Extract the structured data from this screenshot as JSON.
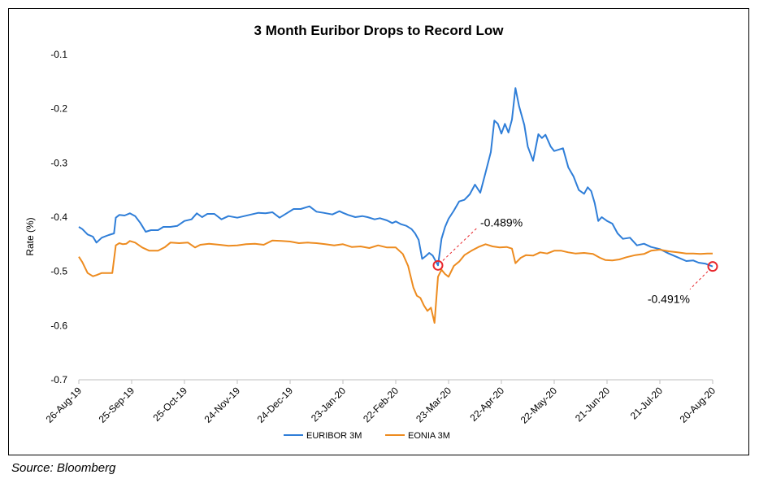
{
  "chart_data": {
    "type": "line",
    "title": "3 Month Euribor Drops to Record Low",
    "xlabel": "",
    "ylabel": "Rate (%)",
    "ylim": [
      -0.7,
      -0.1
    ],
    "yticks": [
      -0.1,
      -0.2,
      -0.3,
      -0.4,
      -0.5,
      -0.6,
      -0.7
    ],
    "xlim": [
      "2019-08-26",
      "2020-08-20"
    ],
    "xtick_labels": [
      "26-Aug-19",
      "25-Sep-19",
      "25-Oct-19",
      "24-Nov-19",
      "24-Dec-19",
      "23-Jan-20",
      "22-Feb-20",
      "23-Mar-20",
      "22-Apr-20",
      "22-May-20",
      "21-Jun-20",
      "21-Jul-20",
      "20-Aug-20"
    ],
    "xtick_dates": [
      "2019-08-26",
      "2019-09-25",
      "2019-10-25",
      "2019-11-24",
      "2019-12-24",
      "2020-01-23",
      "2020-02-22",
      "2020-03-23",
      "2020-04-22",
      "2020-05-22",
      "2020-06-21",
      "2020-07-21",
      "2020-08-20"
    ],
    "grid": false,
    "legend": "bottom",
    "series": [
      {
        "name": "EURIBOR 3M",
        "color": "#2F7ED8",
        "points": [
          [
            "2019-08-26",
            -0.418
          ],
          [
            "2019-08-28",
            -0.422
          ],
          [
            "2019-08-31",
            -0.432
          ],
          [
            "2019-09-03",
            -0.436
          ],
          [
            "2019-09-05",
            -0.447
          ],
          [
            "2019-09-08",
            -0.438
          ],
          [
            "2019-09-12",
            -0.433
          ],
          [
            "2019-09-15",
            -0.43
          ],
          [
            "2019-09-16",
            -0.401
          ],
          [
            "2019-09-18",
            -0.396
          ],
          [
            "2019-09-21",
            -0.397
          ],
          [
            "2019-09-24",
            -0.393
          ],
          [
            "2019-09-27",
            -0.398
          ],
          [
            "2019-09-30",
            -0.411
          ],
          [
            "2019-10-03",
            -0.427
          ],
          [
            "2019-10-06",
            -0.424
          ],
          [
            "2019-10-10",
            -0.424
          ],
          [
            "2019-10-13",
            -0.418
          ],
          [
            "2019-10-17",
            -0.418
          ],
          [
            "2019-10-21",
            -0.416
          ],
          [
            "2019-10-25",
            -0.407
          ],
          [
            "2019-10-29",
            -0.404
          ],
          [
            "2019-11-01",
            -0.393
          ],
          [
            "2019-11-04",
            -0.4
          ],
          [
            "2019-11-07",
            -0.394
          ],
          [
            "2019-11-11",
            -0.394
          ],
          [
            "2019-11-15",
            -0.404
          ],
          [
            "2019-11-19",
            -0.398
          ],
          [
            "2019-11-24",
            -0.401
          ],
          [
            "2019-11-28",
            -0.398
          ],
          [
            "2019-12-02",
            -0.395
          ],
          [
            "2019-12-06",
            -0.392
          ],
          [
            "2019-12-10",
            -0.393
          ],
          [
            "2019-12-14",
            -0.391
          ],
          [
            "2019-12-18",
            -0.401
          ],
          [
            "2019-12-22",
            -0.393
          ],
          [
            "2019-12-26",
            -0.385
          ],
          [
            "2019-12-30",
            -0.385
          ],
          [
            "2020-01-04",
            -0.38
          ],
          [
            "2020-01-08",
            -0.39
          ],
          [
            "2020-01-12",
            -0.392
          ],
          [
            "2020-01-17",
            -0.395
          ],
          [
            "2020-01-21",
            -0.389
          ],
          [
            "2020-01-23",
            -0.392
          ],
          [
            "2020-01-26",
            -0.396
          ],
          [
            "2020-01-30",
            -0.4
          ],
          [
            "2020-02-03",
            -0.398
          ],
          [
            "2020-02-06",
            -0.4
          ],
          [
            "2020-02-10",
            -0.404
          ],
          [
            "2020-02-13",
            -0.402
          ],
          [
            "2020-02-17",
            -0.406
          ],
          [
            "2020-02-20",
            -0.411
          ],
          [
            "2020-02-22",
            -0.408
          ],
          [
            "2020-02-25",
            -0.413
          ],
          [
            "2020-02-28",
            -0.416
          ],
          [
            "2020-03-02",
            -0.422
          ],
          [
            "2020-03-04",
            -0.43
          ],
          [
            "2020-03-06",
            -0.442
          ],
          [
            "2020-03-08",
            -0.477
          ],
          [
            "2020-03-10",
            -0.472
          ],
          [
            "2020-03-12",
            -0.466
          ],
          [
            "2020-03-14",
            -0.471
          ],
          [
            "2020-03-17",
            -0.489
          ],
          [
            "2020-03-19",
            -0.44
          ],
          [
            "2020-03-21",
            -0.418
          ],
          [
            "2020-03-23",
            -0.403
          ],
          [
            "2020-03-26",
            -0.388
          ],
          [
            "2020-03-29",
            -0.371
          ],
          [
            "2020-04-01",
            -0.368
          ],
          [
            "2020-04-04",
            -0.358
          ],
          [
            "2020-04-07",
            -0.34
          ],
          [
            "2020-04-10",
            -0.355
          ],
          [
            "2020-04-13",
            -0.318
          ],
          [
            "2020-04-16",
            -0.28
          ],
          [
            "2020-04-18",
            -0.222
          ],
          [
            "2020-04-20",
            -0.228
          ],
          [
            "2020-04-22",
            -0.246
          ],
          [
            "2020-04-24",
            -0.228
          ],
          [
            "2020-04-26",
            -0.244
          ],
          [
            "2020-04-28",
            -0.22
          ],
          [
            "2020-04-30",
            -0.162
          ],
          [
            "2020-05-02",
            -0.195
          ],
          [
            "2020-05-05",
            -0.23
          ],
          [
            "2020-05-07",
            -0.27
          ],
          [
            "2020-05-10",
            -0.296
          ],
          [
            "2020-05-13",
            -0.247
          ],
          [
            "2020-05-15",
            -0.254
          ],
          [
            "2020-05-17",
            -0.248
          ],
          [
            "2020-05-20",
            -0.27
          ],
          [
            "2020-05-22",
            -0.278
          ],
          [
            "2020-05-25",
            -0.275
          ],
          [
            "2020-05-27",
            -0.273
          ],
          [
            "2020-05-30",
            -0.308
          ],
          [
            "2020-06-02",
            -0.325
          ],
          [
            "2020-06-05",
            -0.35
          ],
          [
            "2020-06-08",
            -0.357
          ],
          [
            "2020-06-10",
            -0.345
          ],
          [
            "2020-06-12",
            -0.352
          ],
          [
            "2020-06-14",
            -0.374
          ],
          [
            "2020-06-16",
            -0.407
          ],
          [
            "2020-06-18",
            -0.4
          ],
          [
            "2020-06-21",
            -0.407
          ],
          [
            "2020-06-24",
            -0.412
          ],
          [
            "2020-06-27",
            -0.43
          ],
          [
            "2020-06-30",
            -0.44
          ],
          [
            "2020-07-04",
            -0.438
          ],
          [
            "2020-07-08",
            -0.452
          ],
          [
            "2020-07-12",
            -0.449
          ],
          [
            "2020-07-16",
            -0.455
          ],
          [
            "2020-07-21",
            -0.459
          ],
          [
            "2020-07-26",
            -0.467
          ],
          [
            "2020-07-31",
            -0.474
          ],
          [
            "2020-08-05",
            -0.481
          ],
          [
            "2020-08-09",
            -0.48
          ],
          [
            "2020-08-12",
            -0.484
          ],
          [
            "2020-08-16",
            -0.486
          ],
          [
            "2020-08-20",
            -0.491
          ]
        ]
      },
      {
        "name": "EONIA 3M",
        "color": "#ED8B1F",
        "points": [
          [
            "2019-08-26",
            -0.473
          ],
          [
            "2019-08-28",
            -0.483
          ],
          [
            "2019-08-31",
            -0.503
          ],
          [
            "2019-09-03",
            -0.509
          ],
          [
            "2019-09-05",
            -0.507
          ],
          [
            "2019-09-08",
            -0.503
          ],
          [
            "2019-09-11",
            -0.503
          ],
          [
            "2019-09-14",
            -0.503
          ],
          [
            "2019-09-16",
            -0.452
          ],
          [
            "2019-09-18",
            -0.448
          ],
          [
            "2019-09-20",
            -0.45
          ],
          [
            "2019-09-22",
            -0.449
          ],
          [
            "2019-09-24",
            -0.444
          ],
          [
            "2019-09-27",
            -0.447
          ],
          [
            "2019-10-01",
            -0.456
          ],
          [
            "2019-10-05",
            -0.462
          ],
          [
            "2019-10-10",
            -0.462
          ],
          [
            "2019-10-14",
            -0.455
          ],
          [
            "2019-10-17",
            -0.447
          ],
          [
            "2019-10-22",
            -0.448
          ],
          [
            "2019-10-27",
            -0.447
          ],
          [
            "2019-10-31",
            -0.456
          ],
          [
            "2019-11-03",
            -0.451
          ],
          [
            "2019-11-08",
            -0.449
          ],
          [
            "2019-11-14",
            -0.451
          ],
          [
            "2019-11-19",
            -0.453
          ],
          [
            "2019-11-24",
            -0.452
          ],
          [
            "2019-11-29",
            -0.45
          ],
          [
            "2019-12-04",
            -0.449
          ],
          [
            "2019-12-09",
            -0.451
          ],
          [
            "2019-12-14",
            -0.443
          ],
          [
            "2019-12-19",
            -0.444
          ],
          [
            "2019-12-24",
            -0.445
          ],
          [
            "2019-12-29",
            -0.448
          ],
          [
            "2020-01-03",
            -0.447
          ],
          [
            "2020-01-08",
            -0.448
          ],
          [
            "2020-01-13",
            -0.45
          ],
          [
            "2020-01-18",
            -0.452
          ],
          [
            "2020-01-23",
            -0.45
          ],
          [
            "2020-01-28",
            -0.455
          ],
          [
            "2020-02-02",
            -0.454
          ],
          [
            "2020-02-07",
            -0.457
          ],
          [
            "2020-02-12",
            -0.452
          ],
          [
            "2020-02-17",
            -0.456
          ],
          [
            "2020-02-22",
            -0.456
          ],
          [
            "2020-02-26",
            -0.468
          ],
          [
            "2020-02-29",
            -0.49
          ],
          [
            "2020-03-03",
            -0.53
          ],
          [
            "2020-03-05",
            -0.545
          ],
          [
            "2020-03-07",
            -0.549
          ],
          [
            "2020-03-09",
            -0.563
          ],
          [
            "2020-03-11",
            -0.573
          ],
          [
            "2020-03-13",
            -0.567
          ],
          [
            "2020-03-15",
            -0.595
          ],
          [
            "2020-03-17",
            -0.51
          ],
          [
            "2020-03-19",
            -0.497
          ],
          [
            "2020-03-21",
            -0.505
          ],
          [
            "2020-03-23",
            -0.51
          ],
          [
            "2020-03-26",
            -0.49
          ],
          [
            "2020-03-29",
            -0.482
          ],
          [
            "2020-04-01",
            -0.47
          ],
          [
            "2020-04-05",
            -0.462
          ],
          [
            "2020-04-09",
            -0.455
          ],
          [
            "2020-04-13",
            -0.45
          ],
          [
            "2020-04-17",
            -0.454
          ],
          [
            "2020-04-21",
            -0.456
          ],
          [
            "2020-04-25",
            -0.455
          ],
          [
            "2020-04-28",
            -0.458
          ],
          [
            "2020-04-30",
            -0.485
          ],
          [
            "2020-05-03",
            -0.475
          ],
          [
            "2020-05-06",
            -0.47
          ],
          [
            "2020-05-10",
            -0.471
          ],
          [
            "2020-05-14",
            -0.465
          ],
          [
            "2020-05-18",
            -0.467
          ],
          [
            "2020-05-22",
            -0.462
          ],
          [
            "2020-05-26",
            -0.462
          ],
          [
            "2020-05-30",
            -0.465
          ],
          [
            "2020-06-03",
            -0.467
          ],
          [
            "2020-06-08",
            -0.466
          ],
          [
            "2020-06-13",
            -0.468
          ],
          [
            "2020-06-17",
            -0.475
          ],
          [
            "2020-06-20",
            -0.479
          ],
          [
            "2020-06-24",
            -0.48
          ],
          [
            "2020-06-28",
            -0.478
          ],
          [
            "2020-07-02",
            -0.474
          ],
          [
            "2020-07-07",
            -0.47
          ],
          [
            "2020-07-12",
            -0.468
          ],
          [
            "2020-07-16",
            -0.462
          ],
          [
            "2020-07-21",
            -0.46
          ],
          [
            "2020-07-26",
            -0.463
          ],
          [
            "2020-07-31",
            -0.465
          ],
          [
            "2020-08-05",
            -0.467
          ],
          [
            "2020-08-09",
            -0.467
          ],
          [
            "2020-08-13",
            -0.468
          ],
          [
            "2020-08-17",
            -0.467
          ],
          [
            "2020-08-20",
            -0.467
          ]
        ]
      }
    ],
    "annotations": [
      {
        "label": "-0.489%",
        "date": "2020-03-17",
        "value": -0.489,
        "marker": "circle",
        "color": "#E8262C"
      },
      {
        "label": "-0.491%",
        "date": "2020-08-20",
        "value": -0.491,
        "marker": "circle",
        "color": "#E8262C"
      }
    ]
  },
  "source_text": "Source: Bloomberg"
}
